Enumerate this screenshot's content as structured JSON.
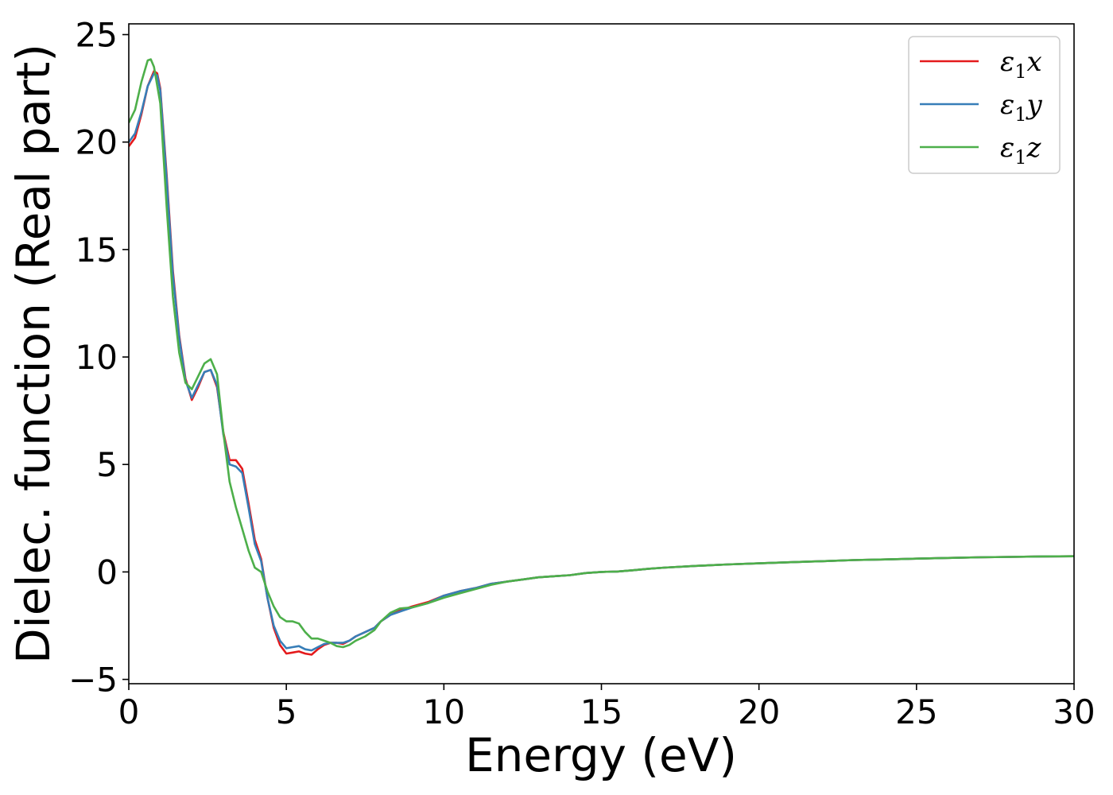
{
  "chart_data": {
    "type": "line",
    "xlabel": "Energy (eV)",
    "ylabel": "Dielec. function (Real part)",
    "xlim": [
      0,
      30
    ],
    "ylim": [
      -5.2,
      25.5
    ],
    "xticks": [
      0,
      5,
      10,
      15,
      20,
      25,
      30
    ],
    "xtick_labels": [
      "0",
      "5",
      "10",
      "15",
      "20",
      "25",
      "30"
    ],
    "yticks": [
      -5,
      0,
      5,
      10,
      15,
      20,
      25
    ],
    "ytick_labels": [
      "−5",
      "0",
      "5",
      "10",
      "15",
      "20",
      "25"
    ],
    "grid": false,
    "legend_position": "top-right",
    "series": [
      {
        "name": "ε₁x",
        "label_base": "ε",
        "label_sub": "1",
        "label_suffix": "x",
        "color": "#e41a1c",
        "x": [
          0,
          0.2,
          0.4,
          0.6,
          0.8,
          0.9,
          1.0,
          1.2,
          1.4,
          1.6,
          1.8,
          2.0,
          2.2,
          2.4,
          2.6,
          2.8,
          3.0,
          3.2,
          3.4,
          3.6,
          3.8,
          4.0,
          4.2,
          4.4,
          4.6,
          4.8,
          5.0,
          5.2,
          5.4,
          5.6,
          5.8,
          6.0,
          6.2,
          6.4,
          6.6,
          6.8,
          7.0,
          7.2,
          7.5,
          7.8,
          8.0,
          8.3,
          8.6,
          9.0,
          9.5,
          10.0,
          10.5,
          11.0,
          11.5,
          12.0,
          12.5,
          13.0,
          13.5,
          14.0,
          14.5,
          15.0,
          15.5,
          16.0,
          16.5,
          17.0,
          18.0,
          19.0,
          20.0,
          21.0,
          22.0,
          23.0,
          24.0,
          25.0,
          26.0,
          27.0,
          28.0,
          29.0,
          30.0
        ],
        "y": [
          19.8,
          20.2,
          21.3,
          22.6,
          23.3,
          23.2,
          22.5,
          18.5,
          14.0,
          11.0,
          9.0,
          8.0,
          8.6,
          9.3,
          9.4,
          8.6,
          6.5,
          5.2,
          5.2,
          4.8,
          3.2,
          1.5,
          0.6,
          -1.2,
          -2.6,
          -3.4,
          -3.8,
          -3.75,
          -3.7,
          -3.8,
          -3.85,
          -3.6,
          -3.4,
          -3.3,
          -3.3,
          -3.35,
          -3.2,
          -3.0,
          -2.8,
          -2.6,
          -2.3,
          -2.0,
          -1.8,
          -1.6,
          -1.4,
          -1.1,
          -0.9,
          -0.75,
          -0.55,
          -0.45,
          -0.35,
          -0.25,
          -0.2,
          -0.15,
          -0.05,
          0.0,
          0.02,
          0.08,
          0.15,
          0.2,
          0.28,
          0.35,
          0.4,
          0.45,
          0.5,
          0.55,
          0.58,
          0.62,
          0.65,
          0.68,
          0.7,
          0.72,
          0.73
        ]
      },
      {
        "name": "ε₁y",
        "label_base": "ε",
        "label_sub": "1",
        "label_suffix": "y",
        "color": "#377eb8",
        "x": [
          0,
          0.2,
          0.4,
          0.6,
          0.8,
          0.9,
          1.0,
          1.2,
          1.4,
          1.6,
          1.8,
          2.0,
          2.2,
          2.4,
          2.6,
          2.8,
          3.0,
          3.2,
          3.4,
          3.6,
          3.8,
          4.0,
          4.2,
          4.4,
          4.6,
          4.8,
          5.0,
          5.2,
          5.4,
          5.6,
          5.8,
          6.0,
          6.2,
          6.4,
          6.6,
          6.8,
          7.0,
          7.2,
          7.5,
          7.8,
          8.0,
          8.3,
          8.6,
          9.0,
          9.5,
          10.0,
          10.5,
          11.0,
          11.5,
          12.0,
          12.5,
          13.0,
          13.5,
          14.0,
          14.5,
          15.0,
          15.5,
          16.0,
          16.5,
          17.0,
          18.0,
          19.0,
          20.0,
          21.0,
          22.0,
          23.0,
          24.0,
          25.0,
          26.0,
          27.0,
          28.0,
          29.0,
          30.0
        ],
        "y": [
          20.0,
          20.4,
          21.4,
          22.6,
          23.2,
          23.1,
          22.4,
          18.3,
          13.8,
          10.9,
          8.9,
          8.1,
          8.7,
          9.3,
          9.4,
          8.7,
          6.4,
          5.0,
          4.9,
          4.6,
          3.0,
          1.3,
          0.5,
          -1.2,
          -2.5,
          -3.2,
          -3.55,
          -3.5,
          -3.45,
          -3.6,
          -3.65,
          -3.5,
          -3.35,
          -3.3,
          -3.3,
          -3.3,
          -3.2,
          -3.0,
          -2.8,
          -2.6,
          -2.3,
          -2.0,
          -1.85,
          -1.65,
          -1.45,
          -1.1,
          -0.9,
          -0.75,
          -0.55,
          -0.45,
          -0.35,
          -0.25,
          -0.2,
          -0.15,
          -0.05,
          0.0,
          0.02,
          0.08,
          0.15,
          0.2,
          0.28,
          0.35,
          0.4,
          0.45,
          0.5,
          0.55,
          0.58,
          0.62,
          0.65,
          0.68,
          0.7,
          0.72,
          0.73
        ]
      },
      {
        "name": "ε₁z",
        "label_base": "ε",
        "label_sub": "1",
        "label_suffix": "z",
        "color": "#4daf4a",
        "x": [
          0,
          0.2,
          0.4,
          0.6,
          0.7,
          0.8,
          1.0,
          1.2,
          1.4,
          1.6,
          1.8,
          2.0,
          2.2,
          2.4,
          2.6,
          2.8,
          3.0,
          3.2,
          3.4,
          3.6,
          3.8,
          4.0,
          4.2,
          4.4,
          4.6,
          4.8,
          5.0,
          5.2,
          5.4,
          5.6,
          5.8,
          6.0,
          6.2,
          6.4,
          6.6,
          6.8,
          7.0,
          7.2,
          7.5,
          7.8,
          8.0,
          8.3,
          8.6,
          9.0,
          9.5,
          10.0,
          10.5,
          11.0,
          11.5,
          12.0,
          12.5,
          13.0,
          13.5,
          14.0,
          14.5,
          15.0,
          15.5,
          16.0,
          16.5,
          17.0,
          18.0,
          19.0,
          20.0,
          21.0,
          22.0,
          23.0,
          24.0,
          25.0,
          26.0,
          27.0,
          28.0,
          29.0,
          30.0
        ],
        "y": [
          20.9,
          21.5,
          22.8,
          23.8,
          23.85,
          23.5,
          21.8,
          17.0,
          12.8,
          10.2,
          8.8,
          8.5,
          9.1,
          9.7,
          9.9,
          9.2,
          6.5,
          4.2,
          3.0,
          2.0,
          1.0,
          0.2,
          0.0,
          -0.9,
          -1.6,
          -2.1,
          -2.3,
          -2.3,
          -2.4,
          -2.8,
          -3.1,
          -3.1,
          -3.2,
          -3.3,
          -3.45,
          -3.5,
          -3.4,
          -3.2,
          -3.0,
          -2.7,
          -2.3,
          -1.9,
          -1.7,
          -1.65,
          -1.45,
          -1.2,
          -1.0,
          -0.8,
          -0.6,
          -0.45,
          -0.35,
          -0.25,
          -0.2,
          -0.15,
          -0.05,
          0.0,
          0.02,
          0.08,
          0.15,
          0.2,
          0.28,
          0.35,
          0.4,
          0.45,
          0.5,
          0.55,
          0.58,
          0.62,
          0.65,
          0.68,
          0.7,
          0.72,
          0.73
        ]
      }
    ]
  }
}
